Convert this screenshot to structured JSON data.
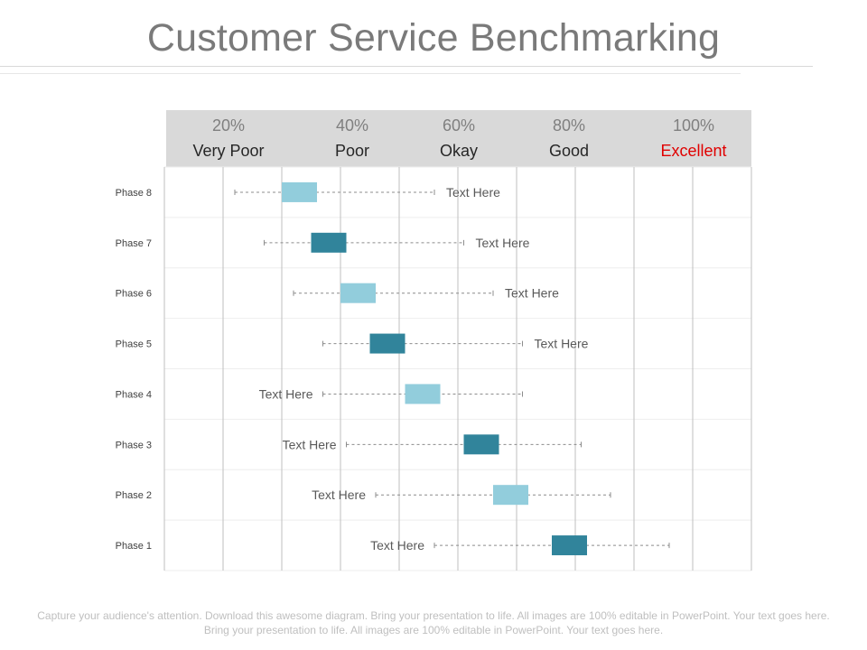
{
  "title": "Customer Service Benchmarking",
  "header": [
    {
      "pct": "20%",
      "label": "Very Poor"
    },
    {
      "pct": "40%",
      "label": "Poor"
    },
    {
      "pct": "60%",
      "label": "Okay"
    },
    {
      "pct": "80%",
      "label": "Good"
    },
    {
      "pct": "100%",
      "label": "Excellent",
      "highlight": "#e00000"
    }
  ],
  "chart_data": {
    "type": "range",
    "xlim": [
      0,
      100
    ],
    "gridlines_every": 10,
    "rows": [
      {
        "phase": "Phase 8",
        "low": 12,
        "high": 46,
        "box_low": 20,
        "box_high": 26,
        "box_color": "#92cddc",
        "note": "Text Here",
        "note_side": "right"
      },
      {
        "phase": "Phase 7",
        "low": 17,
        "high": 51,
        "box_low": 25,
        "box_high": 31,
        "box_color": "#31849b",
        "note": "Text Here",
        "note_side": "right"
      },
      {
        "phase": "Phase 6",
        "low": 22,
        "high": 56,
        "box_low": 30,
        "box_high": 36,
        "box_color": "#92cddc",
        "note": "Text Here",
        "note_side": "right"
      },
      {
        "phase": "Phase 5",
        "low": 27,
        "high": 61,
        "box_low": 35,
        "box_high": 41,
        "box_color": "#31849b",
        "note": "Text Here",
        "note_side": "right"
      },
      {
        "phase": "Phase 4",
        "low": 27,
        "high": 61,
        "box_low": 41,
        "box_high": 47,
        "box_color": "#92cddc",
        "note": "Text Here",
        "note_side": "left"
      },
      {
        "phase": "Phase 3",
        "low": 31,
        "high": 71,
        "box_low": 51,
        "box_high": 57,
        "box_color": "#31849b",
        "note": "Text Here",
        "note_side": "left"
      },
      {
        "phase": "Phase 2",
        "low": 36,
        "high": 76,
        "box_low": 56,
        "box_high": 62,
        "box_color": "#92cddc",
        "note": "Text Here",
        "note_side": "left"
      },
      {
        "phase": "Phase 1",
        "low": 46,
        "high": 86,
        "box_low": 66,
        "box_high": 72,
        "box_color": "#31849b",
        "note": "Text Here",
        "note_side": "left"
      }
    ]
  },
  "footer": "Capture your audience's attention. Download this awesome diagram. Bring your presentation to life. All images are 100% editable in PowerPoint. Your text goes here. Bring your presentation to life. All images are 100% editable in PowerPoint. Your text goes here."
}
